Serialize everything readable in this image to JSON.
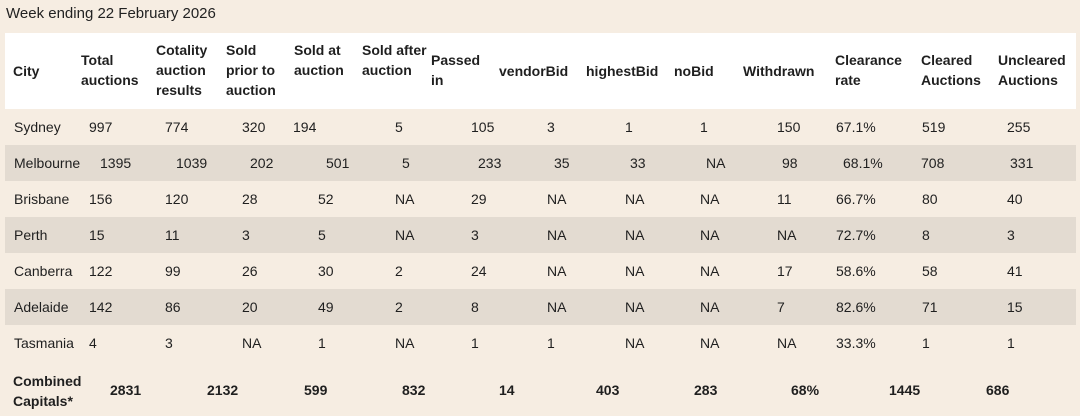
{
  "caption": "Week ending 22 February 2026",
  "headers": [
    "City",
    "Total auctions",
    "Cotality auction results",
    "Sold prior to auction",
    "Sold at auction",
    "Sold after auction",
    "Passed in",
    "vendorBid",
    "highestBid",
    "noBid",
    "Withdrawn",
    "Clearance rate",
    "Cleared Auctions",
    "Uncleared Auctions"
  ],
  "rows": [
    [
      "Sydney",
      "997",
      "774",
      "320",
      "194",
      "5",
      "105",
      "3",
      "1",
      "1",
      "150",
      "67.1%",
      "519",
      "255"
    ],
    [
      "Melbourne",
      "1395",
      "1039",
      "202",
      "501",
      "5",
      "233",
      "35",
      "33",
      "NA",
      "98",
      "68.1%",
      "708",
      "331"
    ],
    [
      "Brisbane",
      "156",
      "120",
      "28",
      "52",
      "NA",
      "29",
      "NA",
      "NA",
      "NA",
      "11",
      "66.7%",
      "80",
      "40"
    ],
    [
      "Perth",
      "15",
      "11",
      "3",
      "5",
      "NA",
      "3",
      "NA",
      "NA",
      "NA",
      "NA",
      "72.7%",
      "8",
      "3"
    ],
    [
      "Canberra",
      "122",
      "99",
      "26",
      "30",
      "2",
      "24",
      "NA",
      "NA",
      "NA",
      "17",
      "58.6%",
      "58",
      "41"
    ],
    [
      "Adelaide",
      "142",
      "86",
      "20",
      "49",
      "2",
      "8",
      "NA",
      "NA",
      "NA",
      "7",
      "82.6%",
      "71",
      "15"
    ],
    [
      "Tasmania",
      "4",
      "3",
      "NA",
      "1",
      "NA",
      "1",
      "1",
      "NA",
      "NA",
      "NA",
      "33.3%",
      "1",
      "1"
    ]
  ],
  "footer": {
    "label": "Combined Capitals*",
    "values": [
      "2831",
      "2132",
      "599",
      "832",
      "14",
      "403",
      "283",
      "68%",
      "1445",
      "686"
    ]
  }
}
